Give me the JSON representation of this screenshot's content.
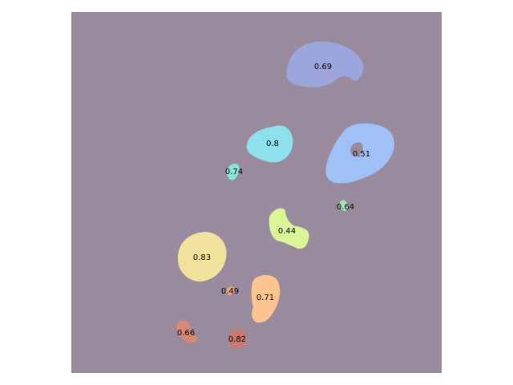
{
  "figure": {
    "background_color": "#998a9e"
  },
  "segments": [
    {
      "id": "seg-1",
      "score_label": "0.69",
      "color": "#9da6dc"
    },
    {
      "id": "seg-2",
      "score_label": "0.8",
      "color": "#8ee0ea"
    },
    {
      "id": "seg-3",
      "score_label": "0.51",
      "color": "#9fc1f7"
    },
    {
      "id": "seg-4",
      "score_label": "0.74",
      "color": "#84e6d4"
    },
    {
      "id": "seg-5",
      "score_label": "0.64",
      "color": "#a6e8b4"
    },
    {
      "id": "seg-6",
      "score_label": "0.44",
      "color": "#dcf597"
    },
    {
      "id": "seg-7",
      "score_label": "0.83",
      "color": "#f1e29e"
    },
    {
      "id": "seg-8",
      "score_label": "0.49",
      "color": "#f3a777"
    },
    {
      "id": "seg-9",
      "score_label": "0.71",
      "color": "#fcc58f"
    },
    {
      "id": "seg-10",
      "score_label": "0.66",
      "color": "#d98878"
    },
    {
      "id": "seg-11",
      "score_label": "0.82",
      "color": "#c77a70"
    }
  ]
}
